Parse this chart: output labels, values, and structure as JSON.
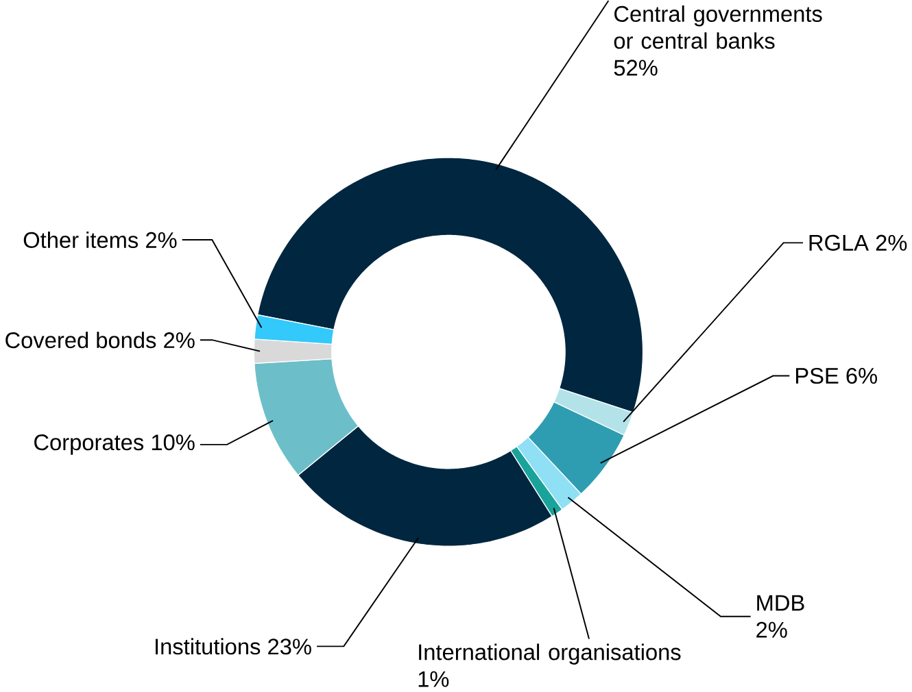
{
  "chart_data": {
    "type": "donut",
    "categories": [
      "Central governments or central banks",
      "RGLA",
      "PSE",
      "MDB",
      "International organisations",
      "Institutions",
      "Corporates",
      "Covered bonds",
      "Other items"
    ],
    "values": [
      52,
      2,
      6,
      2,
      1,
      23,
      10,
      2,
      2
    ],
    "colors": [
      "#01263f",
      "#b3e3e8",
      "#2e9db1",
      "#8fdff5",
      "#1aa39b",
      "#01263f",
      "#6cbfc8",
      "#d9d9d9",
      "#33c9fa"
    ],
    "value_labels": [
      "52%",
      "2%",
      "6%",
      "2%",
      "1%",
      "23%",
      "10%",
      "2%",
      "2%"
    ]
  }
}
